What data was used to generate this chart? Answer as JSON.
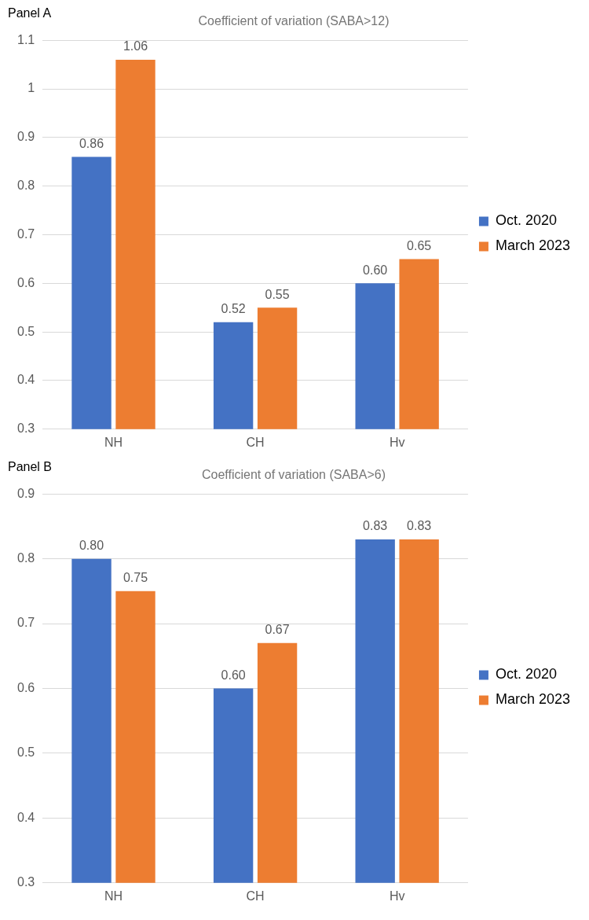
{
  "chart_data": [
    {
      "type": "bar",
      "title": "Coefficient of variation (SABA>12)",
      "annotations": [
        "Panel A"
      ],
      "categories": [
        "NH",
        "CH",
        "Hv"
      ],
      "series": [
        {
          "name": "Oct. 2020",
          "color": "#4472c4",
          "values": [
            0.86,
            0.52,
            0.6
          ],
          "value_labels": [
            "0.86",
            "0.52",
            "0.60"
          ]
        },
        {
          "name": "March 2023",
          "color": "#ed7d31",
          "values": [
            1.06,
            0.55,
            0.65
          ],
          "value_labels": [
            "1.06",
            "0.55",
            "0.65"
          ]
        }
      ],
      "ylim": [
        0.3,
        1.1
      ],
      "yticks": [
        0.3,
        0.4,
        0.5,
        0.6,
        0.7,
        0.8,
        0.9,
        1,
        1.1
      ],
      "grid": "y",
      "legend": "right"
    },
    {
      "type": "bar",
      "title": "Coefficient of variation (SABA>6)",
      "annotations": [
        "Panel B"
      ],
      "categories": [
        "NH",
        "CH",
        "Hv"
      ],
      "series": [
        {
          "name": "Oct. 2020",
          "color": "#4472c4",
          "values": [
            0.8,
            0.6,
            0.83
          ],
          "value_labels": [
            "0.80",
            "0.60",
            "0.83"
          ]
        },
        {
          "name": "March 2023",
          "color": "#ed7d31",
          "values": [
            0.75,
            0.67,
            0.83
          ],
          "value_labels": [
            "0.75",
            "0.67",
            "0.83"
          ]
        }
      ],
      "ylim": [
        0.3,
        0.9
      ],
      "yticks": [
        0.3,
        0.4,
        0.5,
        0.6,
        0.7,
        0.8,
        0.9
      ],
      "grid": "y",
      "legend": "right"
    }
  ]
}
